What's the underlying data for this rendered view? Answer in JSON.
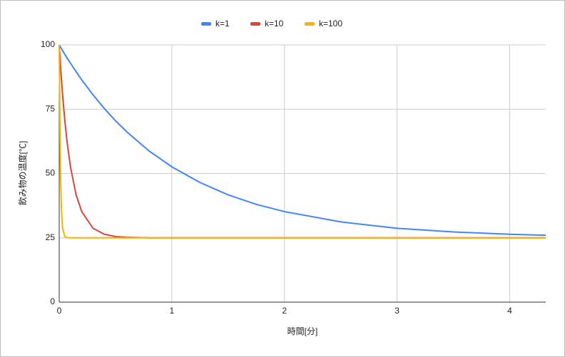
{
  "chart_data": {
    "type": "line",
    "x_label": "時間[分]",
    "y_label": "飲み物の温度[℃]",
    "x": [
      0,
      0.01,
      0.02,
      0.03,
      0.05,
      0.07,
      0.1,
      0.15,
      0.2,
      0.3,
      0.4,
      0.5,
      0.6,
      0.8,
      1,
      1.25,
      1.5,
      1.75,
      2,
      2.5,
      3,
      3.5,
      4,
      4.32
    ],
    "series": [
      {
        "name": "k=1",
        "color": "#4285f4",
        "values": [
          100,
          99.25,
          98.5,
          97.8,
          96.3,
          94.9,
          92.9,
          89.6,
          86.4,
          80.6,
          75.3,
          70.5,
          66.2,
          58.7,
          52.6,
          46.5,
          41.7,
          38.0,
          35.2,
          31.2,
          28.7,
          27.3,
          26.4,
          26.0
        ]
      },
      {
        "name": "k=10",
        "color": "#db4437",
        "values": [
          100,
          92.9,
          86.4,
          80.6,
          70.5,
          62.2,
          52.6,
          41.7,
          35.2,
          28.7,
          26.4,
          25.5,
          25.2,
          25.0,
          25,
          25,
          25,
          25,
          25,
          25,
          25,
          25,
          25,
          25
        ]
      },
      {
        "name": "k=100",
        "color": "#f4b400",
        "values": [
          100,
          52.6,
          35.2,
          28.7,
          25.5,
          25.1,
          25.0,
          25,
          25,
          25,
          25,
          25,
          25,
          25,
          25,
          25,
          25,
          25,
          25,
          25,
          25,
          25,
          25,
          25
        ]
      }
    ],
    "xlim": [
      0,
      4.32
    ],
    "xticks": [
      0,
      1,
      2,
      3,
      4
    ],
    "ylim": [
      0,
      100
    ],
    "yticks": [
      0,
      25,
      50,
      75,
      100
    ],
    "grid": true,
    "legend": "top"
  }
}
